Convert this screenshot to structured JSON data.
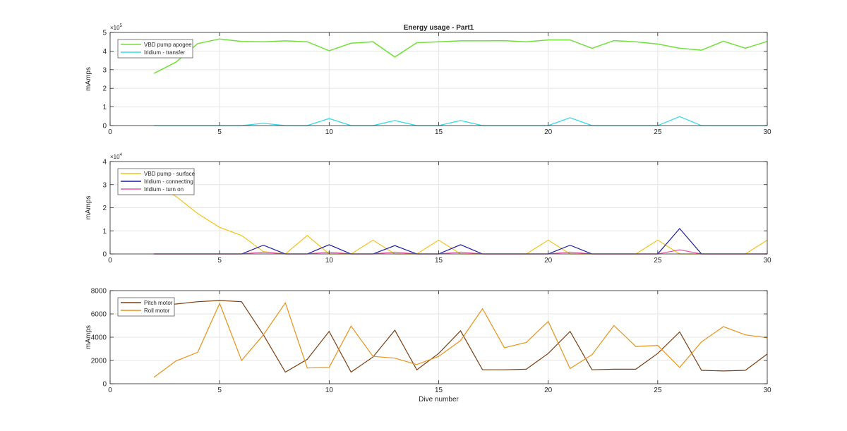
{
  "figure": {
    "title": "Energy usage - Part1",
    "xlabel": "Dive number"
  },
  "chart_data": [
    {
      "type": "line",
      "title": "Energy usage - Part1",
      "ylabel": "mAmps",
      "xlabel": "",
      "xlim": [
        0,
        30
      ],
      "ylim": [
        0,
        500000
      ],
      "xticks": [
        0,
        5,
        10,
        15,
        20,
        25,
        30
      ],
      "yticks": [
        0,
        100000,
        200000,
        300000,
        400000,
        500000
      ],
      "ytick_labels": [
        "0",
        "1",
        "2",
        "3",
        "4",
        "5"
      ],
      "exponent_label": "×10",
      "exponent_power": "5",
      "grid": true,
      "legend": "top-left",
      "x": [
        2,
        3,
        4,
        5,
        6,
        7,
        8,
        9,
        10,
        11,
        12,
        13,
        14,
        15,
        16,
        17,
        18,
        19,
        20,
        21,
        22,
        23,
        24,
        25,
        26,
        27,
        28,
        29,
        30
      ],
      "series": [
        {
          "name": "VBD pump apogee",
          "color": "#72e03a",
          "values": [
            280000,
            340000,
            440000,
            465000,
            452000,
            450000,
            455000,
            450000,
            402000,
            442000,
            450000,
            368000,
            445000,
            450000,
            455000,
            455000,
            456000,
            450000,
            460000,
            460000,
            415000,
            456000,
            450000,
            438000,
            415000,
            405000,
            453000,
            415000,
            452000
          ]
        },
        {
          "name": "Iridium - transfer",
          "color": "#2fd9e6",
          "values": [
            0,
            0,
            0,
            0,
            0,
            12000,
            0,
            0,
            38000,
            0,
            0,
            27000,
            0,
            0,
            27000,
            0,
            0,
            0,
            0,
            42000,
            0,
            0,
            0,
            0,
            48000,
            0,
            0,
            0,
            0
          ]
        }
      ]
    },
    {
      "type": "line",
      "title": "",
      "ylabel": "mAmps",
      "xlabel": "",
      "xlim": [
        0,
        30
      ],
      "ylim": [
        0,
        40000
      ],
      "xticks": [
        0,
        5,
        10,
        15,
        20,
        25,
        30
      ],
      "yticks": [
        0,
        10000,
        20000,
        30000,
        40000
      ],
      "ytick_labels": [
        "0",
        "1",
        "2",
        "3",
        "4"
      ],
      "exponent_label": "×10",
      "exponent_power": "4",
      "grid": true,
      "legend": "top-left",
      "x": [
        2,
        3,
        4,
        5,
        6,
        7,
        8,
        9,
        10,
        11,
        12,
        13,
        14,
        15,
        16,
        17,
        18,
        19,
        20,
        21,
        22,
        23,
        24,
        25,
        26,
        27,
        28,
        29,
        30
      ],
      "series": [
        {
          "name": "VBD pump - surface",
          "color": "#f2c21a",
          "values": [
            30000,
            25000,
            17500,
            11500,
            8000,
            1000,
            0,
            8000,
            0,
            0,
            6000,
            0,
            0,
            6000,
            0,
            0,
            0,
            0,
            6000,
            0,
            0,
            0,
            0,
            6000,
            0,
            0,
            0,
            0,
            6000
          ]
        },
        {
          "name": "Iridium - connecting",
          "color": "#1a1aa0",
          "values": [
            0,
            0,
            0,
            0,
            0,
            3800,
            0,
            0,
            4000,
            0,
            0,
            3600,
            0,
            0,
            4000,
            0,
            0,
            0,
            0,
            3800,
            0,
            0,
            0,
            0,
            11000,
            0,
            0,
            0,
            0
          ]
        },
        {
          "name": "Iridium - turn on",
          "color": "#e35ba5",
          "values": [
            0,
            0,
            0,
            0,
            0,
            800,
            0,
            0,
            800,
            0,
            0,
            800,
            0,
            0,
            800,
            0,
            0,
            0,
            0,
            800,
            0,
            0,
            0,
            0,
            1800,
            0,
            0,
            0,
            0
          ]
        }
      ]
    },
    {
      "type": "line",
      "title": "",
      "ylabel": "mAmps",
      "xlabel": "Dive number",
      "xlim": [
        0,
        30
      ],
      "ylim": [
        0,
        8000
      ],
      "xticks": [
        0,
        5,
        10,
        15,
        20,
        25,
        30
      ],
      "yticks": [
        0,
        2000,
        4000,
        6000,
        8000
      ],
      "ytick_labels": [
        "0",
        "2000",
        "4000",
        "6000",
        "8000"
      ],
      "grid": true,
      "legend": "top-left",
      "x": [
        2,
        3,
        4,
        5,
        6,
        7,
        8,
        9,
        10,
        11,
        12,
        13,
        14,
        15,
        16,
        17,
        18,
        19,
        20,
        21,
        22,
        23,
        24,
        25,
        26,
        27,
        28,
        29,
        30
      ],
      "series": [
        {
          "name": "Pitch motor",
          "color": "#7a3e12",
          "values": [
            6800,
            6850,
            7050,
            7150,
            7050,
            4200,
            1000,
            2100,
            4500,
            1000,
            2300,
            4600,
            1200,
            2600,
            4550,
            1200,
            1200,
            1250,
            2600,
            4500,
            1200,
            1250,
            1250,
            2600,
            4450,
            1150,
            1100,
            1150,
            2550
          ]
        },
        {
          "name": "Roll motor",
          "color": "#e69219",
          "values": [
            550,
            1950,
            2700,
            6900,
            2000,
            4200,
            6950,
            1350,
            1400,
            4950,
            2350,
            2200,
            1650,
            2350,
            3700,
            6450,
            3100,
            3550,
            5350,
            1300,
            2500,
            5000,
            3200,
            3300,
            1400,
            3600,
            4900,
            4200,
            3950
          ]
        }
      ]
    }
  ]
}
